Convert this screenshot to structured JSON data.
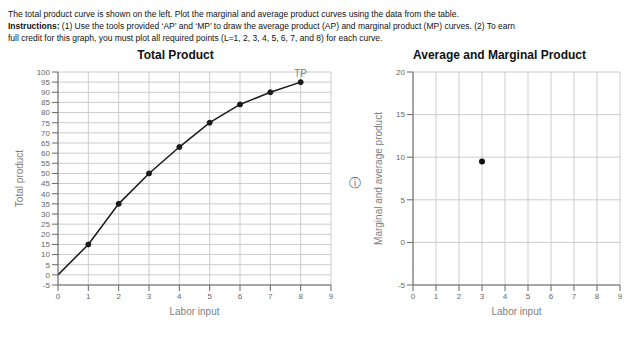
{
  "chart_data": [
    {
      "type": "line",
      "title": "Total Product",
      "xlabel": "Labor input",
      "ylabel": "Total product",
      "x": [
        0,
        1,
        2,
        3,
        4,
        5,
        6,
        7,
        8
      ],
      "series": [
        {
          "type": "line",
          "color": "#1a1a1a",
          "values": [
            0,
            15,
            35,
            50,
            63,
            75,
            84,
            90,
            95
          ]
        },
        {
          "type": "scatter",
          "color": "#1a1a1a",
          "values": [
            null,
            15,
            35,
            50,
            63,
            75,
            84,
            90,
            95
          ]
        }
      ],
      "xlim": [
        0,
        9
      ],
      "xticks": [
        0,
        1,
        2,
        3,
        4,
        5,
        6,
        7,
        8,
        9
      ],
      "ylim": [
        -5,
        100
      ],
      "yticks": [
        -5,
        0,
        5,
        10,
        15,
        20,
        25,
        30,
        35,
        40,
        45,
        50,
        55,
        60,
        65,
        70,
        75,
        80,
        85,
        90,
        95,
        100
      ],
      "grid": true,
      "annotations": [
        {
          "text": "TP",
          "x": 8,
          "y": 95
        }
      ]
    },
    {
      "type": "scatter",
      "title": "Average and Marginal Product",
      "xlabel": "Labor input",
      "ylabel": "Marginal and average product",
      "x": [
        3
      ],
      "values": [
        9.5
      ],
      "color": "#111111",
      "xlim": [
        0,
        9
      ],
      "xticks": [
        0,
        1,
        2,
        3,
        4,
        5,
        6,
        7,
        8,
        9
      ],
      "ylim": [
        -5,
        20
      ],
      "yticks": [
        -5,
        0,
        5,
        10,
        15,
        20
      ],
      "grid": true
    }
  ],
  "annotations": [
    "The total product curve is shown on the left. Plot the marginal and average product curves using the data from the table.",
    "Instructions:",
    "(1) Use the tools provided ‘AP’ and ‘MP’ to draw the average product (AP) and marginal product (MP) curves. (2) To earn",
    "full credit for this graph, you must plot all required points (L=1, 2, 3, 4, 5, 6, 7, and 8) for each curve.",
    "ⓘ"
  ]
}
